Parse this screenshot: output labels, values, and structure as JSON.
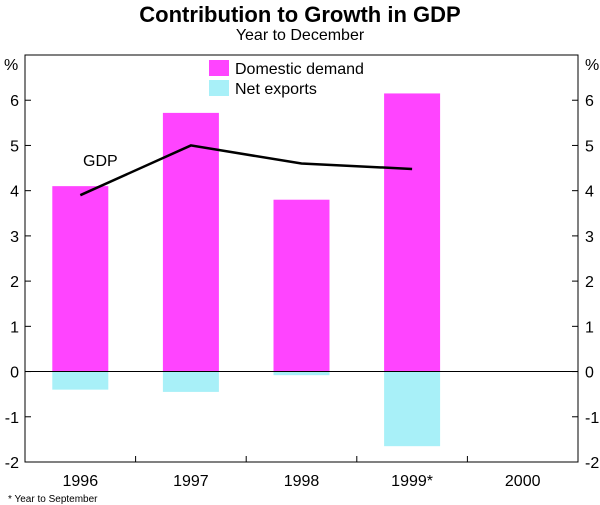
{
  "chart_data": {
    "type": "bar",
    "title": "Contribution to Growth in GDP",
    "subtitle": "Year to December",
    "ylabel_left": "%",
    "ylabel_right": "%",
    "ylim": [
      -2,
      7
    ],
    "yticks": [
      -2,
      -1,
      0,
      1,
      2,
      3,
      4,
      5,
      6
    ],
    "categories": [
      "1996",
      "1997",
      "1998",
      "1999*",
      "2000"
    ],
    "series": [
      {
        "name": "Domestic demand",
        "color": "#ff44ff",
        "values": [
          4.1,
          5.72,
          3.8,
          6.15,
          null
        ]
      },
      {
        "name": "Net exports",
        "color": "#a8f0f8",
        "values": [
          -0.4,
          -0.45,
          -0.08,
          -1.65,
          null
        ]
      }
    ],
    "line": {
      "name": "GDP",
      "label": "GDP",
      "color": "#000000",
      "values": [
        3.9,
        5.0,
        4.6,
        4.48,
        null
      ]
    },
    "footnote": "* Year to September"
  }
}
